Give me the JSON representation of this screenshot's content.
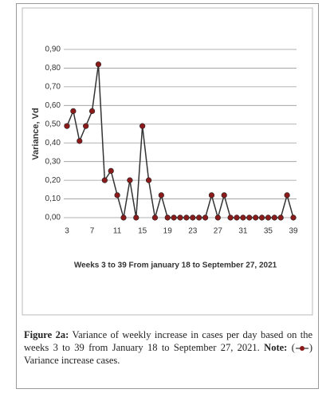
{
  "chart_data": {
    "type": "line",
    "ylabel": "Variance, Vd",
    "xlabel": "Weeks 3 to 39 From january 18 to September 27, 2021",
    "x": [
      3,
      4,
      5,
      6,
      7,
      8,
      9,
      10,
      11,
      12,
      13,
      14,
      15,
      16,
      17,
      18,
      19,
      20,
      21,
      22,
      23,
      24,
      25,
      26,
      27,
      28,
      29,
      30,
      31,
      32,
      33,
      34,
      35,
      36,
      37,
      38,
      39
    ],
    "series": [
      {
        "name": "Variance increase cases.",
        "color": "#8b1a1a",
        "values": [
          0.49,
          0.57,
          0.41,
          0.49,
          0.57,
          0.82,
          0.2,
          0.25,
          0.12,
          0,
          0.2,
          0,
          0.49,
          0.2,
          0,
          0.12,
          0,
          0,
          0,
          0,
          0,
          0,
          0,
          0.12,
          0,
          0.12,
          0,
          0,
          0,
          0,
          0,
          0,
          0,
          0,
          0,
          0.12,
          0
        ]
      }
    ],
    "xlim": [
      3,
      39
    ],
    "xticks": [
      3,
      7,
      11,
      15,
      19,
      23,
      27,
      31,
      35,
      39
    ],
    "ylim": [
      0,
      0.9
    ],
    "yticks": [
      {
        "value": 0,
        "label": "0,00"
      },
      {
        "value": 0.1,
        "label": "0,10"
      },
      {
        "value": 0.2,
        "label": "0,20"
      },
      {
        "value": 0.3,
        "label": "0,30"
      },
      {
        "value": 0.4,
        "label": "0,40"
      },
      {
        "value": 0.5,
        "label": "0,50"
      },
      {
        "value": 0.6,
        "label": "0,60"
      },
      {
        "value": 0.7,
        "label": "0,70"
      },
      {
        "value": 0.8,
        "label": "0,80"
      },
      {
        "value": 0.9,
        "label": "0,90"
      }
    ],
    "grid": true
  },
  "caption": {
    "label": "Figure 2a:",
    "text": "Variance of weekly increase in cases per day based on the weeks 3 to 39 from January 18 to September 27, 2021.",
    "note_label": "Note:",
    "note_open": "(",
    "note_close": ")"
  }
}
